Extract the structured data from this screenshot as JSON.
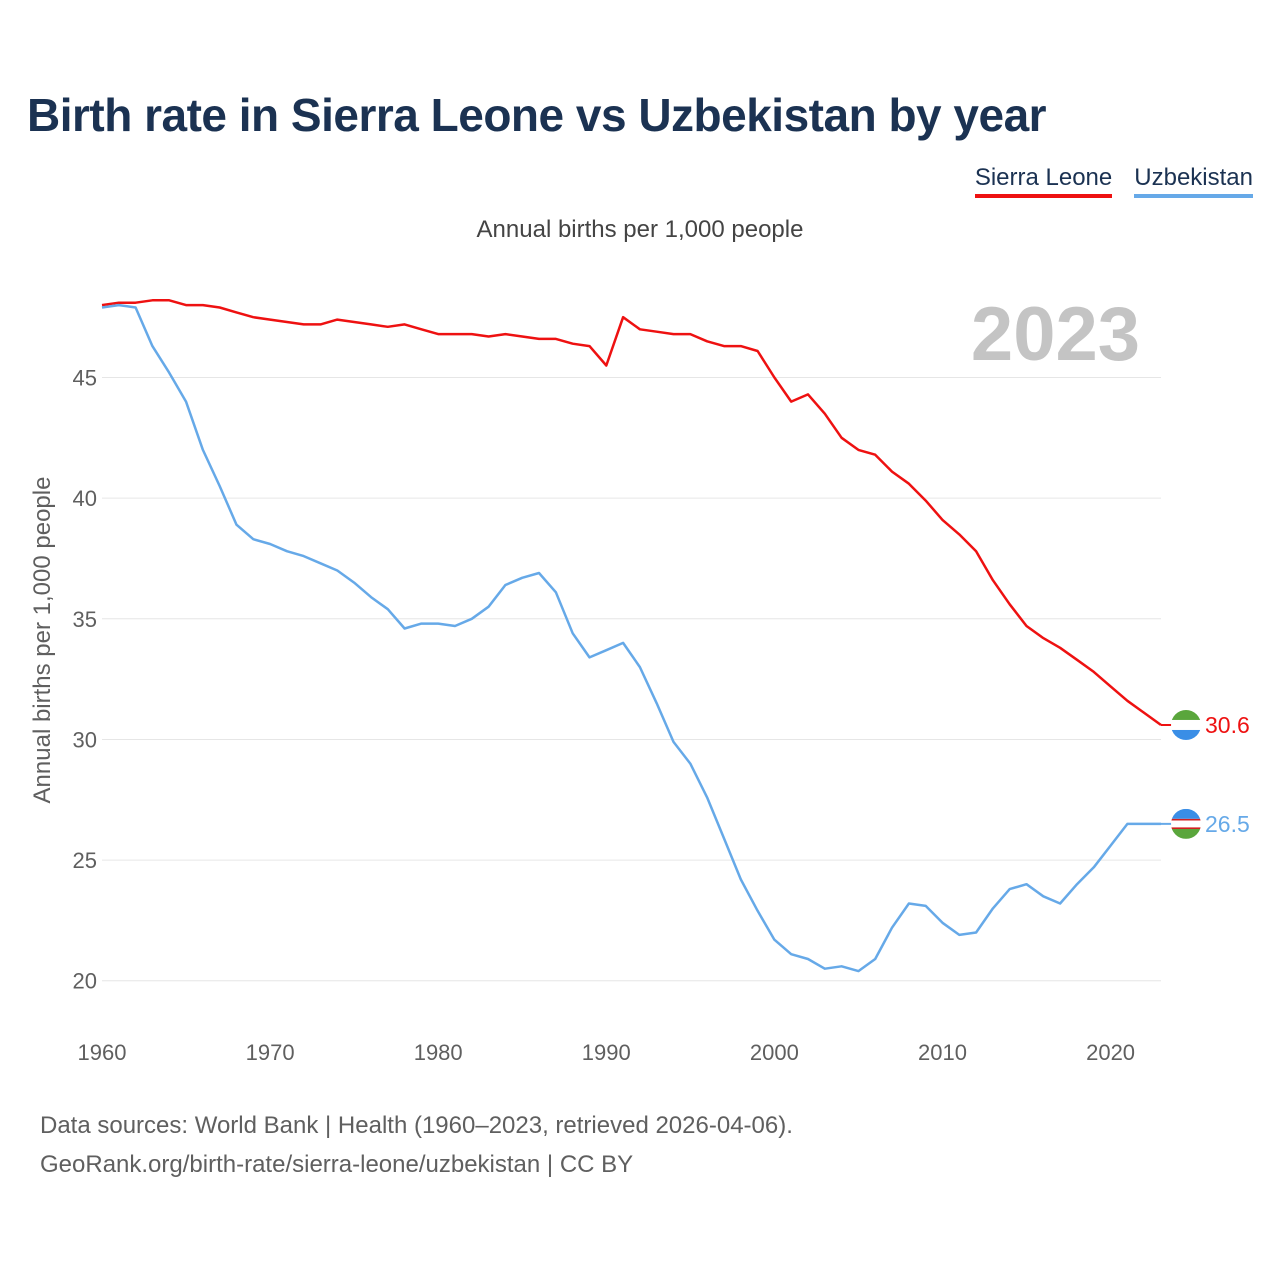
{
  "title": "Birth rate in Sierra Leone vs Uzbekistan by year",
  "legend": {
    "items": [
      "Sierra Leone",
      "Uzbekistan"
    ]
  },
  "subtitle": "Annual births per 1,000 people",
  "year_watermark": "2023",
  "source": {
    "line1": "Data sources: World Bank | Health (1960–2023, retrieved 2026-04-06).",
    "line2": "GeoRank.org/birth-rate/sierra-leone/uzbekistan | CC BY"
  },
  "colors": {
    "sierra_leone": "#ee1111",
    "uzbekistan": "#66a9e8",
    "title": "#1b3252"
  },
  "chart_data": {
    "type": "line",
    "title": "Birth rate in Sierra Leone vs Uzbekistan by year",
    "xlabel": "",
    "ylabel": "Annual births per 1,000 people",
    "xlim": [
      1960,
      2023
    ],
    "ylim": [
      18,
      49
    ],
    "xticks": [
      1960,
      1970,
      1980,
      1990,
      2000,
      2010,
      2020
    ],
    "yticks": [
      20,
      25,
      30,
      35,
      40,
      45
    ],
    "grid": true,
    "legend": "top-right",
    "x": [
      1960,
      1961,
      1962,
      1963,
      1964,
      1965,
      1966,
      1967,
      1968,
      1969,
      1970,
      1971,
      1972,
      1973,
      1974,
      1975,
      1976,
      1977,
      1978,
      1979,
      1980,
      1981,
      1982,
      1983,
      1984,
      1985,
      1986,
      1987,
      1988,
      1989,
      1990,
      1991,
      1992,
      1993,
      1994,
      1995,
      1996,
      1997,
      1998,
      1999,
      2000,
      2001,
      2002,
      2003,
      2004,
      2005,
      2006,
      2007,
      2008,
      2009,
      2010,
      2011,
      2012,
      2013,
      2014,
      2015,
      2016,
      2017,
      2018,
      2019,
      2020,
      2021,
      2022,
      2023
    ],
    "series": [
      {
        "name": "Sierra Leone",
        "color": "#ee1111",
        "end_label": "30.6",
        "values": [
          48.0,
          48.1,
          48.1,
          48.2,
          48.2,
          48.0,
          48.0,
          47.9,
          47.7,
          47.5,
          47.4,
          47.3,
          47.2,
          47.2,
          47.4,
          47.3,
          47.2,
          47.1,
          47.2,
          47.0,
          46.8,
          46.8,
          46.8,
          46.7,
          46.8,
          46.7,
          46.6,
          46.6,
          46.4,
          46.3,
          45.5,
          47.5,
          47.0,
          46.9,
          46.8,
          46.8,
          46.5,
          46.3,
          46.3,
          46.1,
          45.0,
          44.0,
          44.3,
          43.5,
          42.5,
          42.0,
          41.8,
          41.1,
          40.6,
          39.9,
          39.1,
          38.5,
          37.8,
          36.6,
          35.6,
          34.7,
          34.2,
          33.8,
          33.3,
          32.8,
          32.2,
          31.6,
          31.1,
          30.6
        ]
      },
      {
        "name": "Uzbekistan",
        "color": "#66a9e8",
        "end_label": "26.5",
        "values": [
          47.9,
          48.0,
          47.9,
          46.3,
          45.2,
          44.0,
          42.0,
          40.5,
          38.9,
          38.3,
          38.1,
          37.8,
          37.6,
          37.3,
          37.0,
          36.5,
          35.9,
          35.4,
          34.6,
          34.8,
          34.8,
          34.7,
          35.0,
          35.5,
          36.4,
          36.7,
          36.9,
          36.1,
          34.4,
          33.4,
          33.7,
          34.0,
          33.0,
          31.5,
          29.9,
          29.0,
          27.6,
          25.9,
          24.2,
          22.9,
          21.7,
          21.1,
          20.9,
          20.5,
          20.6,
          20.4,
          20.9,
          22.2,
          23.2,
          23.1,
          22.4,
          21.9,
          22.0,
          23.0,
          23.8,
          24.0,
          23.5,
          23.2,
          24.0,
          24.7,
          25.6,
          26.5,
          26.5,
          26.5
        ]
      }
    ]
  }
}
